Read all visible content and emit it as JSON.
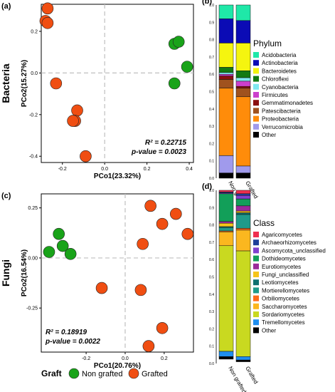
{
  "chart_data": [
    {
      "panel_label": "(a)",
      "row_label": "Bacteria",
      "type": "scatter",
      "xlabel": "PCo1(23.32%)",
      "ylabel": "PCo2(15.27%)",
      "xlim": [
        -0.3,
        0.42
      ],
      "ylim": [
        -0.43,
        0.33
      ],
      "xticks": [
        -0.2,
        0.0,
        0.2,
        0.4
      ],
      "xtick_labels": [
        "-0.2",
        "0.0",
        "0.2",
        "0.4"
      ],
      "yticks": [
        -0.4,
        -0.2,
        0.0,
        0.2
      ],
      "ytick_labels": [
        "-0.4",
        "-0.2",
        "0.0",
        "0.2"
      ],
      "grid": false,
      "stats": {
        "r2_label": "R² = 0.22715",
        "p_label": "p-value = 0.0023"
      },
      "series": [
        {
          "name": "Non grafted",
          "color": "#19a319",
          "points": [
            [
              0.33,
              0.14
            ],
            [
              0.35,
              0.15
            ],
            [
              0.39,
              0.03
            ],
            [
              0.33,
              -0.05
            ]
          ]
        },
        {
          "name": "Grafted",
          "color": "#f04e12",
          "points": [
            [
              -0.27,
              0.31
            ],
            [
              -0.28,
              0.25
            ],
            [
              -0.27,
              0.24
            ],
            [
              -0.23,
              -0.05
            ],
            [
              -0.13,
              -0.18
            ],
            [
              -0.14,
              -0.23
            ],
            [
              -0.15,
              -0.23
            ],
            [
              -0.09,
              -0.4
            ]
          ]
        }
      ]
    },
    {
      "panel_label": "(b)",
      "type": "bar",
      "stacked": true,
      "categories": [
        "Non grafted",
        "Grafted"
      ],
      "ylim": [
        0,
        1
      ],
      "yticks": [
        0.0,
        0.1,
        0.2,
        0.3,
        0.4,
        0.5,
        0.6,
        0.7,
        0.8,
        0.9,
        1.0
      ],
      "ytick_labels": [
        "0.0",
        "0.1",
        "0.2",
        "0.3",
        "0.4",
        "0.5",
        "0.6",
        "0.7",
        "0.8",
        "0.9",
        "1.0"
      ],
      "legend_title": "Phylum",
      "series": [
        {
          "name": "Acidobacteria",
          "color": "#1fe8a8",
          "values": [
            0.08,
            0.09
          ]
        },
        {
          "name": "Actinobacteria",
          "color": "#0b0bb5",
          "values": [
            0.14,
            0.13
          ]
        },
        {
          "name": "Bacteroidetes",
          "color": "#f5f50f",
          "values": [
            0.14,
            0.16
          ]
        },
        {
          "name": "Chloroflexi",
          "color": "#127a12",
          "values": [
            0.03,
            0.04
          ]
        },
        {
          "name": "Cyanobacteria",
          "color": "#7fe8f0",
          "values": [
            0.01,
            0.02
          ]
        },
        {
          "name": "Firmicutes",
          "color": "#cc3fcc",
          "values": [
            0.01,
            0.03
          ]
        },
        {
          "name": "Gemmatimonadetes",
          "color": "#8a0f0f",
          "values": [
            0.02,
            0.01
          ]
        },
        {
          "name": "Patescibacteria",
          "color": "#a0521e",
          "values": [
            0.05,
            0.05
          ]
        },
        {
          "name": "Proteobacteria",
          "color": "#ff8c0a",
          "values": [
            0.39,
            0.4
          ]
        },
        {
          "name": "Verrucomicrobia",
          "color": "#a09aec",
          "values": [
            0.1,
            0.04
          ]
        },
        {
          "name": "Other",
          "color": "#000000",
          "values": [
            0.03,
            0.03
          ]
        }
      ]
    },
    {
      "panel_label": "(c)",
      "row_label": "Fungi",
      "type": "scatter",
      "xlabel": "PCo1(20.76%)",
      "ylabel": "PCo2(16.54%)",
      "xlim": [
        -0.43,
        0.35
      ],
      "ylim": [
        -0.47,
        0.32
      ],
      "xticks": [
        -0.2,
        0.0,
        0.2
      ],
      "xtick_labels": [
        "-0.2",
        "0.0",
        "0.2"
      ],
      "yticks": [
        -0.25,
        0.0,
        0.25
      ],
      "ytick_labels": [
        "-0.25",
        "0.00",
        "0.25"
      ],
      "grid": false,
      "stats": {
        "r2_label": "R² = 0.18919",
        "p_label": "p-value = 0.0022"
      },
      "series": [
        {
          "name": "Non grafted",
          "color": "#19a319",
          "points": [
            [
              -0.34,
              0.12
            ],
            [
              -0.39,
              0.03
            ],
            [
              -0.32,
              0.06
            ],
            [
              -0.28,
              0.02
            ]
          ]
        },
        {
          "name": "Grafted",
          "color": "#f04e12",
          "points": [
            [
              0.13,
              0.26
            ],
            [
              0.26,
              0.22
            ],
            [
              0.19,
              0.17
            ],
            [
              0.32,
              0.12
            ],
            [
              0.09,
              0.07
            ],
            [
              -0.12,
              -0.15
            ],
            [
              0.08,
              -0.16
            ],
            [
              0.19,
              -0.35
            ],
            [
              0.12,
              -0.44
            ]
          ]
        }
      ]
    },
    {
      "panel_label": "(d)",
      "type": "bar",
      "stacked": true,
      "categories": [
        "Non grafted",
        "Grafted"
      ],
      "ylim": [
        0,
        1
      ],
      "yticks": [
        0.0,
        0.1,
        0.2,
        0.3,
        0.4,
        0.5,
        0.6,
        0.7,
        0.8,
        0.9,
        1.0
      ],
      "ytick_labels": [
        "0.0",
        "0.1",
        "0.2",
        "0.3",
        "0.4",
        "0.5",
        "0.6",
        "0.7",
        "0.8",
        "0.9",
        "1.0"
      ],
      "legend_title": "Class",
      "series": [
        {
          "name": "Agaricomycetes",
          "color": "#ef2f4f",
          "values": [
            0.01,
            0.02
          ]
        },
        {
          "name": "Archaeorhizomycetes",
          "color": "#1f3f9a",
          "values": [
            0.005,
            0.01
          ]
        },
        {
          "name": "Ascomycota_unclassified",
          "color": "#7f40cf",
          "values": [
            0.005,
            0.02
          ]
        },
        {
          "name": "Dothideomycetes",
          "color": "#129f59",
          "values": [
            0.16,
            0.04
          ]
        },
        {
          "name": "Eurotiomycetes",
          "color": "#9a2a9a",
          "values": [
            0.01,
            0.03
          ]
        },
        {
          "name": "Fungi_unclassified",
          "color": "#f5c51a",
          "values": [
            0.02,
            0.01
          ]
        },
        {
          "name": "Leotiomycetes",
          "color": "#0f6f6f",
          "values": [
            0.005,
            0.01
          ]
        },
        {
          "name": "Mortierellomycetes",
          "color": "#1f9a8a",
          "values": [
            0.02,
            0.08
          ]
        },
        {
          "name": "Orbiliomycetes",
          "color": "#ff6a1a",
          "values": [
            0.005,
            0.01
          ]
        },
        {
          "name": "Saccharomycetes",
          "color": "#fbb71f",
          "values": [
            0.08,
            0.12
          ]
        },
        {
          "name": "Sordariomycetes",
          "color": "#c9d920",
          "values": [
            0.61,
            0.61
          ]
        },
        {
          "name": "Tremellomycetes",
          "color": "#1f8fef",
          "values": [
            0.03,
            0.02
          ]
        },
        {
          "name": "Other",
          "color": "#000000",
          "values": [
            0.015,
            0.01
          ]
        }
      ]
    }
  ],
  "legend_bottom": {
    "title": "Graft",
    "items": [
      {
        "name": "Non grafted",
        "color": "#19a319"
      },
      {
        "name": "Grafted",
        "color": "#f04e12"
      }
    ]
  }
}
